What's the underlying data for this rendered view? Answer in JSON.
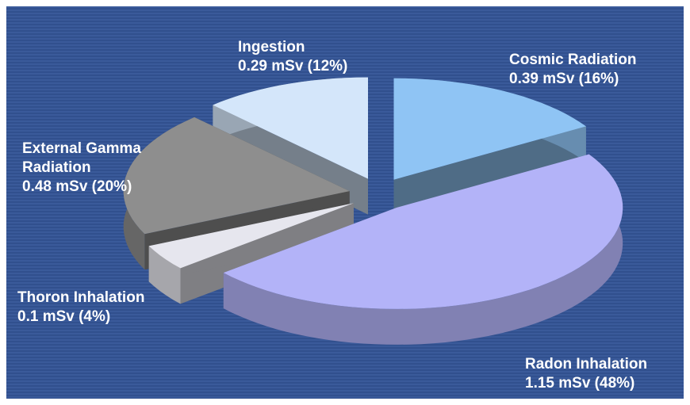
{
  "chart_data": {
    "type": "pie",
    "categories": [
      "Cosmic Radiation",
      "Radon Inhalation",
      "Thoron Inhalation",
      "External Gamma Radiation",
      "Ingestion"
    ],
    "values": [
      0.39,
      1.15,
      0.1,
      0.48,
      0.29
    ],
    "value_labels": [
      "0.39 mSv (16%)",
      "1.15 mSv (48%)",
      "0.1 mSv (4%)",
      "0.48 mSv (20%)",
      "0.29 mSv (12%)"
    ],
    "colors": [
      "#8fc4f4",
      "#b3b3f8",
      "#e6e6ee",
      "#8e8e8e",
      "#d4e6fa"
    ]
  }
}
